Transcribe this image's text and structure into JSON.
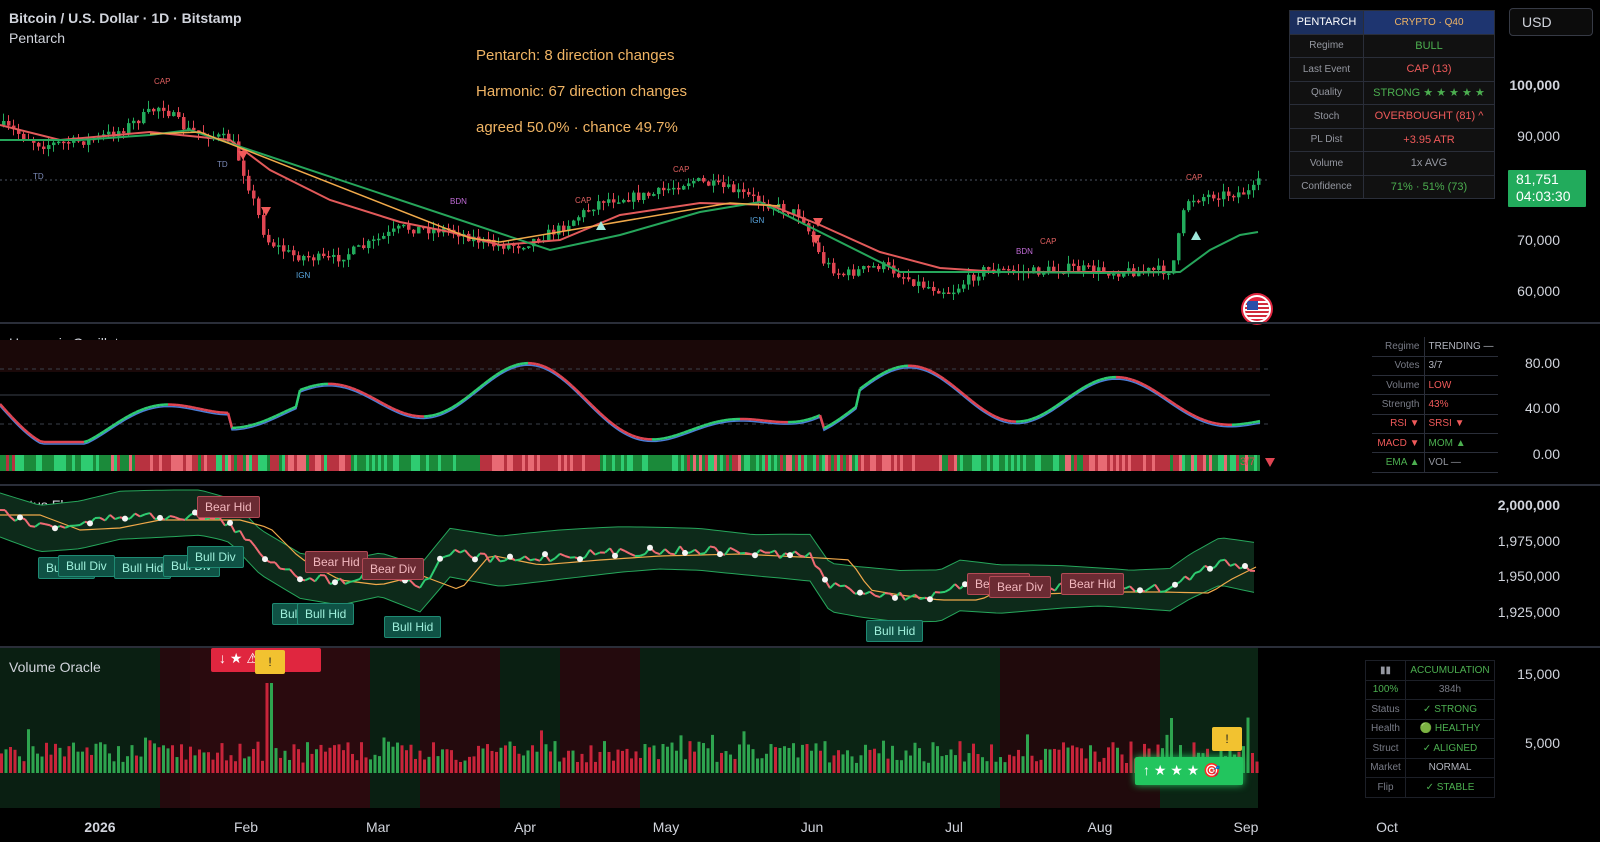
{
  "header": {
    "symbol_title": "Bitcoin / U.S. Dollar · 1D · Bitstamp",
    "indicator_name": "Pentarch",
    "currency_button": "USD"
  },
  "annotations": {
    "line1": "Pentarch: 8 direction changes",
    "line2": "Harmonic: 67 direction changes",
    "line3": "agreed 50.0%  ·  chance 49.7%"
  },
  "pentarch_table": {
    "header_key": "PENTARCH",
    "header_value": "CRYPTO · Q40",
    "rows": [
      {
        "key": "Regime",
        "value": "BULL",
        "color": "#4caf50"
      },
      {
        "key": "Last Event",
        "value": "CAP (13)",
        "color": "#f05a5a"
      },
      {
        "key": "Quality",
        "value": "STRONG ★ ★ ★ ★ ★",
        "color": "#4caf50"
      },
      {
        "key": "Stoch",
        "value": "OVERBOUGHT (81) ^",
        "color": "#f05a5a"
      },
      {
        "key": "PL Dist",
        "value": "+3.95 ATR",
        "color": "#f05a5a"
      },
      {
        "key": "Volume",
        "value": "1x AVG",
        "color": "#9598a1"
      },
      {
        "key": "Confidence",
        "value": "71% · 51% (73)",
        "color": "#4caf50"
      }
    ]
  },
  "price_axis": {
    "labels": [
      "100,000",
      "90,000",
      "70,000",
      "60,000"
    ],
    "last_price": "81,751",
    "countdown": "04:03:30"
  },
  "price_chart": {
    "event_labels": [
      "CAP",
      "TD",
      "TD",
      "IGN",
      "BDN",
      "CAP",
      "CAP",
      "IGN",
      "BDN",
      "CAP",
      "CAP"
    ]
  },
  "harmonic": {
    "title": "Harmonic Oscillator",
    "axis": [
      "80.00",
      "40.00",
      "0.00"
    ],
    "strip_label": "3/7",
    "table": [
      {
        "key": "Regime",
        "value": "TRENDING —",
        "kcolor": "#787b86",
        "vcolor": "#b2b5be"
      },
      {
        "key": "Votes",
        "value": "3/7",
        "kcolor": "#787b86",
        "vcolor": "#b2b5be"
      },
      {
        "key": "Volume",
        "value": "LOW",
        "kcolor": "#787b86",
        "vcolor": "#f05a5a"
      },
      {
        "key": "Strength",
        "value": "43%",
        "kcolor": "#787b86",
        "vcolor": "#f05a5a"
      },
      {
        "key": "RSI ▼",
        "value": "SRSI ▼",
        "kcolor": "#f05a5a",
        "vcolor": "#f05a5a"
      },
      {
        "key": "MACD ▼",
        "value": "MOM ▲",
        "kcolor": "#f05a5a",
        "vcolor": "#4caf50"
      },
      {
        "key": "EMA ▲",
        "value": "VOL —",
        "kcolor": "#4caf50",
        "vcolor": "#9598a1"
      }
    ]
  },
  "plutus": {
    "title": "Plutus Flow",
    "axis": [
      "2,000,000",
      "1,975,000",
      "1,950,000",
      "1,925,000"
    ],
    "tags": {
      "bear_hid_1": "Bear Hid",
      "bull_hid_1": "Bull Hid",
      "bull_div_1": "Bull Div",
      "bull_hid_2": "Bull Hid",
      "bull_div_2": "Bull Div",
      "bull_div_3": "Bull Div",
      "bear_hid_2": "Bear Hid",
      "bear_div_1": "Bear Div",
      "bull_hid_3": "Bull Hid",
      "bull_hid_4": "Bull Hid",
      "bull_hid_5": "Bull Hid",
      "bear_hid_3": "Bear Hid",
      "bear_div_2": "Bear Div",
      "bear_hid_4": "Bear Hid",
      "bull_hid_6": "Bull Hid"
    }
  },
  "volume_oracle": {
    "title": "Volume Oracle",
    "axis": [
      "15,000",
      "5,000"
    ],
    "red_badge": "↓ ★ ⚠ 🎯",
    "green_badge": "↑ ★ ★ ★ 🎯",
    "warn_label": "!",
    "table": {
      "header_icon": "chart-icon",
      "header_value": "ACCUMULATION",
      "pct": "100%",
      "hours": "384h",
      "rows": [
        {
          "key": "Status",
          "value": "✓ STRONG",
          "color": "#4caf50"
        },
        {
          "key": "Health",
          "value": "🟢 HEALTHY",
          "color": "#4caf50"
        },
        {
          "key": "Struct",
          "value": "✓ ALIGNED",
          "color": "#4caf50"
        },
        {
          "key": "Market",
          "value": "NORMAL",
          "color": "#b2b5be"
        },
        {
          "key": "Flip",
          "value": "✓ STABLE",
          "color": "#4caf50"
        }
      ]
    }
  },
  "time_axis": [
    {
      "label": "2026",
      "bold": true
    },
    {
      "label": "Feb",
      "bold": false
    },
    {
      "label": "Mar",
      "bold": false
    },
    {
      "label": "Apr",
      "bold": false
    },
    {
      "label": "May",
      "bold": false
    },
    {
      "label": "Jun",
      "bold": false
    },
    {
      "label": "Jul",
      "bold": false
    },
    {
      "label": "Aug",
      "bold": false
    },
    {
      "label": "Sep",
      "bold": false
    },
    {
      "label": "Oct",
      "bold": false
    }
  ],
  "colors": {
    "bull": "#22ab5c",
    "bear": "#e04552",
    "accent_orange": "#f0b464",
    "background": "#000000"
  }
}
